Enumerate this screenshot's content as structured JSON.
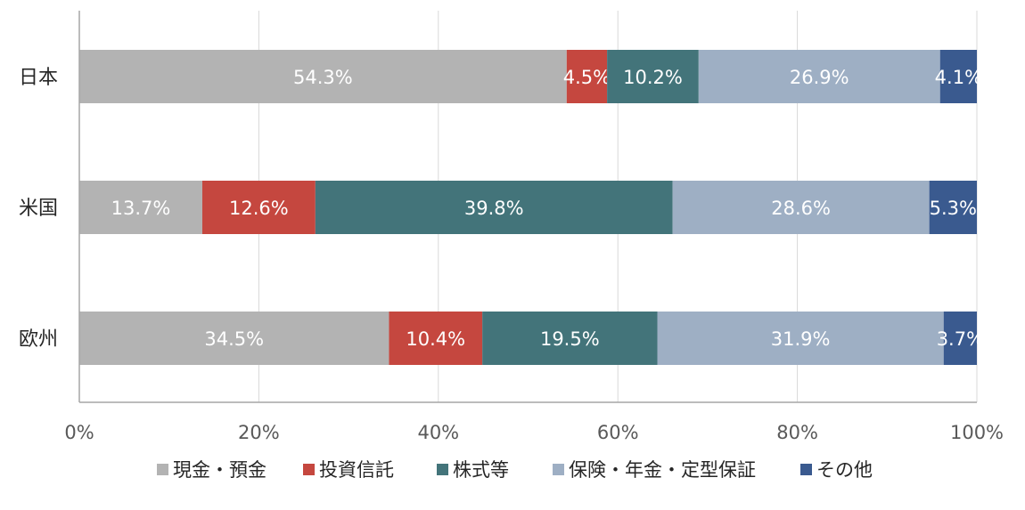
{
  "chart_data": {
    "type": "bar",
    "orientation": "horizontal",
    "stacked": true,
    "categories": [
      "日本",
      "米国",
      "欧州"
    ],
    "series": [
      {
        "name": "現金・預金",
        "color": "#b3b3b3",
        "values": [
          54.3,
          13.7,
          34.5
        ],
        "labels": [
          "54.3%",
          "13.7%",
          "34.5%"
        ]
      },
      {
        "name": "投資信託",
        "color": "#c5473f",
        "values": [
          4.5,
          12.6,
          10.4
        ],
        "labels": [
          "4.5%",
          "12.6%",
          "10.4%"
        ]
      },
      {
        "name": "株式等",
        "color": "#43747a",
        "values": [
          10.2,
          39.8,
          19.5
        ],
        "labels": [
          "10.2%",
          "39.8%",
          "19.5%"
        ]
      },
      {
        "name": "保険・年金・定型保証",
        "color": "#9eafc4",
        "values": [
          26.9,
          28.6,
          31.9
        ],
        "labels": [
          "26.9%",
          "28.6%",
          "31.9%"
        ]
      },
      {
        "name": "その他",
        "color": "#3a5a8f",
        "values": [
          4.1,
          5.3,
          3.7
        ],
        "labels": [
          "4.1%",
          "5.3%",
          "3.7%"
        ]
      }
    ],
    "xlim": [
      0,
      100
    ],
    "x_ticks": [
      0,
      20,
      40,
      60,
      80,
      100
    ],
    "x_tick_labels": [
      "0%",
      "20%",
      "40%",
      "60%",
      "80%",
      "100%"
    ],
    "title": "",
    "xlabel": "",
    "ylabel": "",
    "grid": "vertical",
    "legend": "bottom"
  }
}
